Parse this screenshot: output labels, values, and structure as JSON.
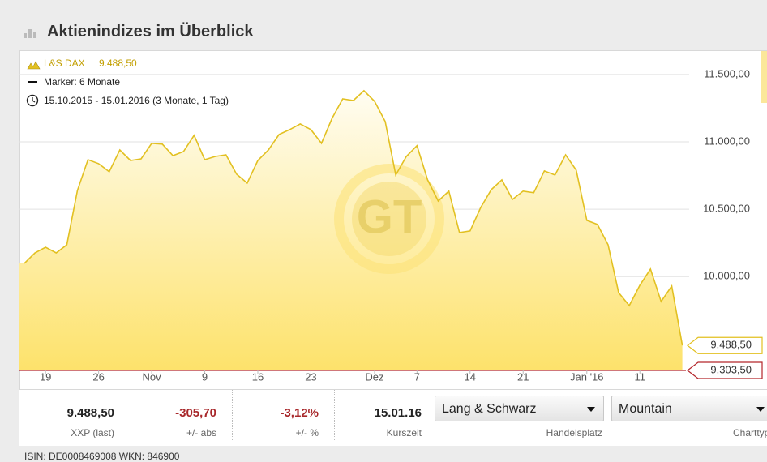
{
  "header": {
    "title": "Aktienindizes im Überblick"
  },
  "chart_data": {
    "type": "area",
    "series": [
      {
        "name": "L&S DAX",
        "color": "#e2c021",
        "values": [
          10098,
          10176,
          10218,
          10176,
          10236,
          10640,
          10868,
          10838,
          10778,
          10940,
          10862,
          10874,
          10989,
          10983,
          10898,
          10928,
          11049,
          10868,
          10892,
          10904,
          10760,
          10694,
          10862,
          10940,
          11055,
          11091,
          11133,
          11091,
          10989,
          11175,
          11319,
          11307,
          11380,
          11301,
          11151,
          10754,
          10892,
          10971,
          10718,
          10561,
          10634,
          10327,
          10339,
          10513,
          10646,
          10718,
          10573,
          10634,
          10622,
          10784,
          10754,
          10904,
          10790,
          10417,
          10387,
          10236,
          9881,
          9785,
          9936,
          10056,
          9815,
          9930,
          9488.5
        ]
      }
    ],
    "categories": [
      null,
      null,
      "19",
      null,
      null,
      null,
      null,
      "26",
      null,
      null,
      null,
      null,
      "Nov",
      null,
      null,
      null,
      null,
      "9",
      null,
      null,
      null,
      null,
      "16",
      null,
      null,
      null,
      null,
      "23",
      null,
      null,
      null,
      null,
      null,
      "Dez",
      null,
      null,
      null,
      "7",
      null,
      null,
      null,
      null,
      "14",
      null,
      null,
      null,
      null,
      "21",
      null,
      null,
      null,
      null,
      null,
      "Jan '16",
      null,
      null,
      null,
      null,
      "11",
      null,
      null,
      null,
      null
    ],
    "ylim": [
      9165,
      11680
    ],
    "yticks": [
      {
        "value": 10000,
        "label": "10.000,00"
      },
      {
        "value": 10500,
        "label": "10.500,00"
      },
      {
        "value": 11000,
        "label": "11.000,00"
      },
      {
        "value": 11500,
        "label": "11.500,00"
      }
    ],
    "grid": true,
    "current": {
      "value": 9488.5,
      "label": "9.488,50"
    },
    "marker": {
      "name": "Marker: 6 Monate",
      "value": 9303.5,
      "label": "9.303,50",
      "color": "#b3262b"
    },
    "range_text": "15.10.2015 - 15.01.2016 (3 Monate, 1 Tag)",
    "watermark": "GT"
  },
  "quote": {
    "fields": [
      {
        "value": "9.488,50",
        "label": "XXP (last)"
      },
      {
        "value": "-305,70",
        "label": "+/- abs"
      },
      {
        "value": "-3,12%",
        "label": "+/- %"
      },
      {
        "value": "15.01.16",
        "label": "Kurszeit"
      }
    ]
  },
  "controls": [
    {
      "selected": "Lang & Schwarz",
      "label": "Handelsplatz"
    },
    {
      "selected": "Mountain",
      "label": "Charttyp"
    }
  ],
  "footer": "ISIN: DE0008469008 WKN: 846900"
}
